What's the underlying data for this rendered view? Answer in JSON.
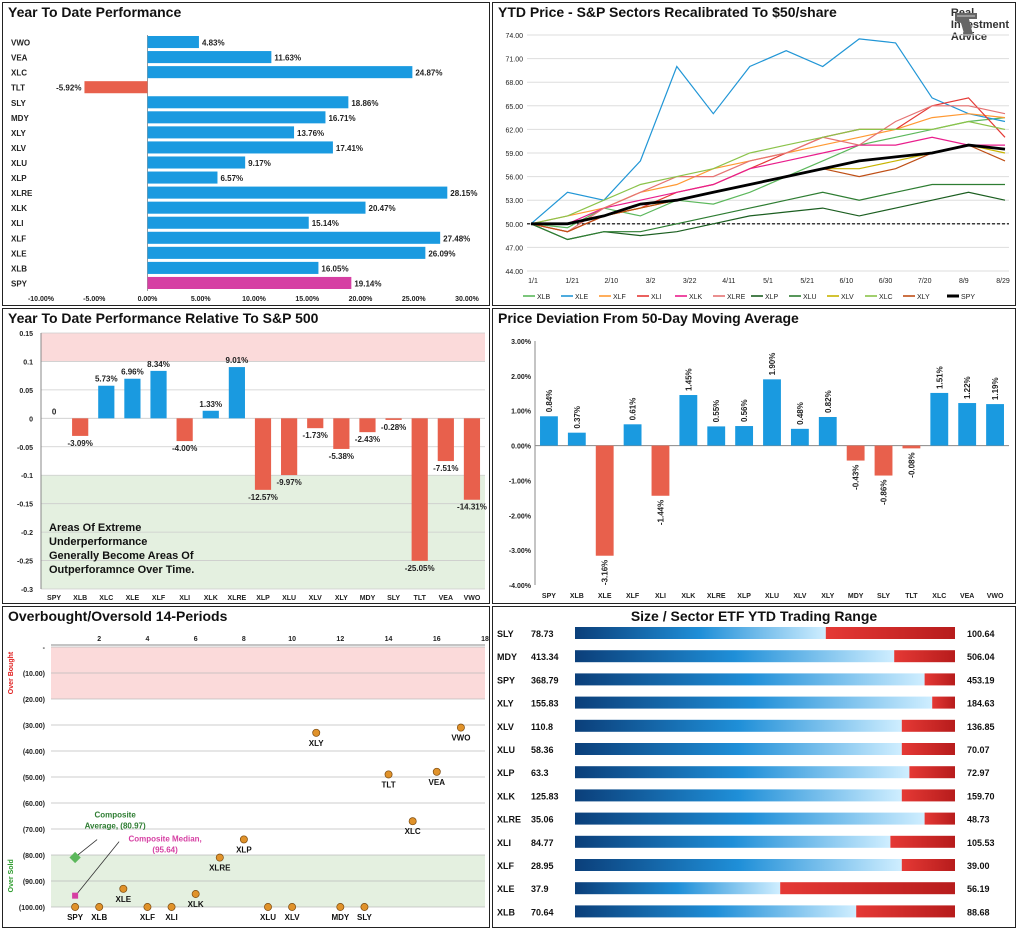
{
  "ytd": {
    "title": "Year To Date Performance",
    "chart_data": {
      "type": "bar",
      "orientation": "horizontal",
      "categories": [
        "VWO",
        "VEA",
        "XLC",
        "TLT",
        "SLY",
        "MDY",
        "XLY",
        "XLV",
        "XLU",
        "XLP",
        "XLRE",
        "XLK",
        "XLI",
        "XLF",
        "XLE",
        "XLB",
        "SPY"
      ],
      "values": [
        4.83,
        11.63,
        24.87,
        -5.92,
        18.86,
        16.71,
        13.76,
        17.41,
        9.17,
        6.57,
        28.15,
        20.47,
        15.14,
        27.48,
        26.09,
        16.05,
        19.14
      ],
      "labels": [
        "4.83%",
        "11.63%",
        "24.87%",
        "-5.92%",
        "18.86%",
        "16.71%",
        "13.76%",
        "17.41%",
        "9.17%",
        "6.57%",
        "28.15%",
        "20.47%",
        "15.14%",
        "27.48%",
        "26.09%",
        "16.05%",
        "19.14%"
      ],
      "xlim": [
        -10,
        30
      ],
      "ticks": [
        "-10.00%",
        "-5.00%",
        "0.00%",
        "5.00%",
        "10.00%",
        "15.00%",
        "20.00%",
        "25.00%",
        "30.00%"
      ],
      "colors": {
        "positive": "#1a9ae0",
        "negative": "#e8604c",
        "highlight": "#d63fa3"
      }
    }
  },
  "price": {
    "title": "YTD Price - S&P Sectors Recalibrated To $50/share",
    "logo": {
      "line1": "Real",
      "line2": "Investment",
      "line3": "Advice"
    },
    "chart_data": {
      "type": "line",
      "x_ticks": [
        "1/1",
        "1/21",
        "2/10",
        "3/2",
        "3/22",
        "4/11",
        "5/1",
        "5/21",
        "6/10",
        "6/30",
        "7/20",
        "8/9",
        "8/29"
      ],
      "ylim": [
        44,
        74
      ],
      "y_ticks": [
        "44.00",
        "47.00",
        "50.00",
        "53.00",
        "56.00",
        "59.00",
        "62.00",
        "65.00",
        "68.00",
        "71.00",
        "74.00"
      ],
      "baseline": 50,
      "series": [
        {
          "name": "XLB",
          "color": "#5cb85c",
          "values": [
            50,
            49.5,
            52,
            51,
            53,
            52.5,
            54,
            56,
            58,
            60,
            61,
            62,
            63,
            63.5
          ]
        },
        {
          "name": "XLE",
          "color": "#2196d6",
          "values": [
            50,
            54,
            53,
            58,
            70,
            64,
            70,
            72,
            70,
            73.5,
            73,
            66,
            64,
            63
          ]
        },
        {
          "name": "XLF",
          "color": "#ff9933",
          "values": [
            50,
            51,
            52,
            54,
            55,
            57,
            58,
            59,
            60,
            61,
            62,
            63.5,
            64,
            63.5
          ]
        },
        {
          "name": "XLI",
          "color": "#e53935",
          "values": [
            50,
            49,
            51,
            52,
            54,
            55,
            57,
            59,
            61,
            62,
            62,
            65,
            66,
            61
          ]
        },
        {
          "name": "XLK",
          "color": "#e91e8c",
          "values": [
            50,
            50,
            52,
            53,
            54,
            55,
            57,
            58,
            59,
            60,
            60,
            61,
            60,
            60
          ]
        },
        {
          "name": "XLRE",
          "color": "#e57373",
          "values": [
            50,
            49,
            52,
            54,
            56,
            56,
            58,
            59,
            61,
            60,
            63,
            65,
            65,
            64
          ]
        },
        {
          "name": "XLP",
          "color": "#1b5e20",
          "values": [
            50,
            48,
            49,
            48.5,
            49,
            50,
            51,
            51.5,
            52,
            51,
            52,
            53,
            54,
            53
          ]
        },
        {
          "name": "XLU",
          "color": "#2e7d32",
          "values": [
            50,
            48,
            49,
            49,
            50,
            51,
            52,
            53,
            54,
            53,
            54,
            55,
            55,
            55
          ]
        },
        {
          "name": "XLV",
          "color": "#c8b400",
          "values": [
            50,
            50,
            51,
            52,
            53,
            54,
            55,
            56,
            57,
            57,
            58,
            59,
            60,
            59
          ]
        },
        {
          "name": "XLC",
          "color": "#8bc34a",
          "values": [
            50,
            51,
            53,
            55,
            56,
            57,
            59,
            60,
            61,
            62,
            62,
            62,
            63,
            62
          ]
        },
        {
          "name": "XLY",
          "color": "#bf4f16",
          "values": [
            50,
            49,
            51,
            52,
            53,
            54,
            55,
            56,
            57,
            56,
            57,
            59,
            60,
            58
          ]
        },
        {
          "name": "SPY",
          "color": "#000000",
          "values": [
            50,
            50,
            51,
            52.5,
            53,
            54,
            55,
            56,
            57,
            58,
            58.5,
            59,
            60,
            59.5
          ]
        }
      ]
    }
  },
  "rel": {
    "title": "Year To Date Performance Relative To S&P 500",
    "note": [
      "Areas Of Extreme",
      "Underperformance",
      "Generally Become Areas Of",
      "Outperforamnce Over Time."
    ],
    "chart_data": {
      "type": "bar",
      "categories": [
        "SPY",
        "XLB",
        "XLC",
        "XLE",
        "XLF",
        "XLI",
        "XLK",
        "XLRE",
        "XLP",
        "XLU",
        "XLV",
        "XLY",
        "MDY",
        "SLY",
        "TLT",
        "VEA",
        "VWO"
      ],
      "values": [
        0,
        -0.0309,
        0.0573,
        0.0696,
        0.0834,
        -0.04,
        0.0133,
        0.0901,
        -0.1257,
        -0.0997,
        -0.0173,
        -0.0538,
        -0.0243,
        -0.0028,
        -0.2505,
        -0.0751,
        -0.1431
      ],
      "labels": [
        "0",
        "-3.09%",
        "5.73%",
        "6.96%",
        "8.34%",
        "-4.00%",
        "1.33%",
        "9.01%",
        "-12.57%",
        "-9.97%",
        "-1.73%",
        "-5.38%",
        "-2.43%",
        "-0.28%",
        "-25.05%",
        "-7.51%",
        "-14.31%"
      ],
      "ylim": [
        -0.3,
        0.15
      ],
      "y_ticks": [
        "0.15",
        "0.1",
        "0.05",
        "0",
        "-0.05",
        "-0.1",
        "-0.15",
        "-0.2",
        "-0.25",
        "-0.3"
      ]
    }
  },
  "dev": {
    "title": "Price Deviation From 50-Day Moving Average",
    "chart_data": {
      "type": "bar",
      "categories": [
        "SPY",
        "XLB",
        "XLE",
        "XLF",
        "XLI",
        "XLK",
        "XLRE",
        "XLP",
        "XLU",
        "XLV",
        "XLY",
        "MDY",
        "SLY",
        "TLT",
        "XLC",
        "VEA",
        "VWO"
      ],
      "values": [
        0.84,
        0.37,
        -3.16,
        0.61,
        -1.44,
        1.45,
        0.55,
        0.56,
        1.9,
        0.48,
        0.82,
        -0.43,
        -0.86,
        -0.08,
        1.51,
        1.22,
        1.19
      ],
      "labels": [
        "0.84%",
        "0.37%",
        "-3.16%",
        "0.61%",
        "-1.44%",
        "1.45%",
        "0.55%",
        "0.56%",
        "1.90%",
        "0.48%",
        "0.82%",
        "-0.43%",
        "-0.86%",
        "-0.08%",
        "1.51%",
        "1.22%",
        "1.19%"
      ],
      "ylim": [
        -4,
        3
      ],
      "y_ticks": [
        "3.00%",
        "2.00%",
        "1.00%",
        "0.00%",
        "-1.00%",
        "-2.00%",
        "-3.00%",
        "-4.00%"
      ]
    }
  },
  "obos": {
    "title": "Overbought/Oversold 14-Periods",
    "overbought_label": "Over Bought",
    "oversold_label": "Over Sold",
    "composite_avg": [
      "Composite",
      "Average, (80.97)"
    ],
    "composite_med": [
      "Composite Median,",
      "(95.64)"
    ],
    "chart_data": {
      "type": "scatter",
      "xlim": [
        0,
        18
      ],
      "x_ticks": [
        "2",
        "4",
        "6",
        "8",
        "10",
        "12",
        "14",
        "16",
        "18"
      ],
      "ylim": [
        0,
        100
      ],
      "y_ticks": [
        "-",
        "(10.00)",
        "(20.00)",
        "(30.00)",
        "(40.00)",
        "(50.00)",
        "(60.00)",
        "(70.00)",
        "(80.00)",
        "(90.00)",
        "(100.00)"
      ],
      "points": [
        {
          "label": "SPY",
          "x": 1,
          "y": 100
        },
        {
          "label": "XLB",
          "x": 2,
          "y": 100
        },
        {
          "label": "XLE",
          "x": 3,
          "y": 93
        },
        {
          "label": "XLF",
          "x": 4,
          "y": 100
        },
        {
          "label": "XLI",
          "x": 5,
          "y": 100
        },
        {
          "label": "XLK",
          "x": 6,
          "y": 95
        },
        {
          "label": "XLRE",
          "x": 7,
          "y": 81
        },
        {
          "label": "XLP",
          "x": 8,
          "y": 74
        },
        {
          "label": "XLU",
          "x": 9,
          "y": 100
        },
        {
          "label": "XLV",
          "x": 10,
          "y": 100
        },
        {
          "label": "XLY",
          "x": 11,
          "y": 33
        },
        {
          "label": "MDY",
          "x": 12,
          "y": 100
        },
        {
          "label": "SLY",
          "x": 13,
          "y": 100
        },
        {
          "label": "TLT",
          "x": 14,
          "y": 49
        },
        {
          "label": "XLC",
          "x": 15,
          "y": 67
        },
        {
          "label": "VEA",
          "x": 16,
          "y": 48
        },
        {
          "label": "VWO",
          "x": 17,
          "y": 31
        }
      ],
      "composite_average": 80.97,
      "composite_median": 95.64
    }
  },
  "range": {
    "title": "Size / Sector ETF YTD Trading Range",
    "chart_data": {
      "type": "bar",
      "rows": [
        {
          "name": "SLY",
          "low": "78.73",
          "high": "100.64",
          "position": 0.66
        },
        {
          "name": "MDY",
          "low": "413.34",
          "high": "506.04",
          "position": 0.84
        },
        {
          "name": "SPY",
          "low": "368.79",
          "high": "453.19",
          "position": 0.92
        },
        {
          "name": "XLY",
          "low": "155.83",
          "high": "184.63",
          "position": 0.94
        },
        {
          "name": "XLV",
          "low": "110.8",
          "high": "136.85",
          "position": 0.86
        },
        {
          "name": "XLU",
          "low": "58.36",
          "high": "70.07",
          "position": 0.86
        },
        {
          "name": "XLP",
          "low": "63.3",
          "high": "72.97",
          "position": 0.88
        },
        {
          "name": "XLK",
          "low": "125.83",
          "high": "159.70",
          "position": 0.86
        },
        {
          "name": "XLRE",
          "low": "35.06",
          "high": "48.73",
          "position": 0.92
        },
        {
          "name": "XLI",
          "low": "84.77",
          "high": "105.53",
          "position": 0.83
        },
        {
          "name": "XLF",
          "low": "28.95",
          "high": "39.00",
          "position": 0.86
        },
        {
          "name": "XLE",
          "low": "37.9",
          "high": "56.19",
          "position": 0.54
        },
        {
          "name": "XLB",
          "low": "70.64",
          "high": "88.68",
          "position": 0.74
        }
      ]
    }
  }
}
